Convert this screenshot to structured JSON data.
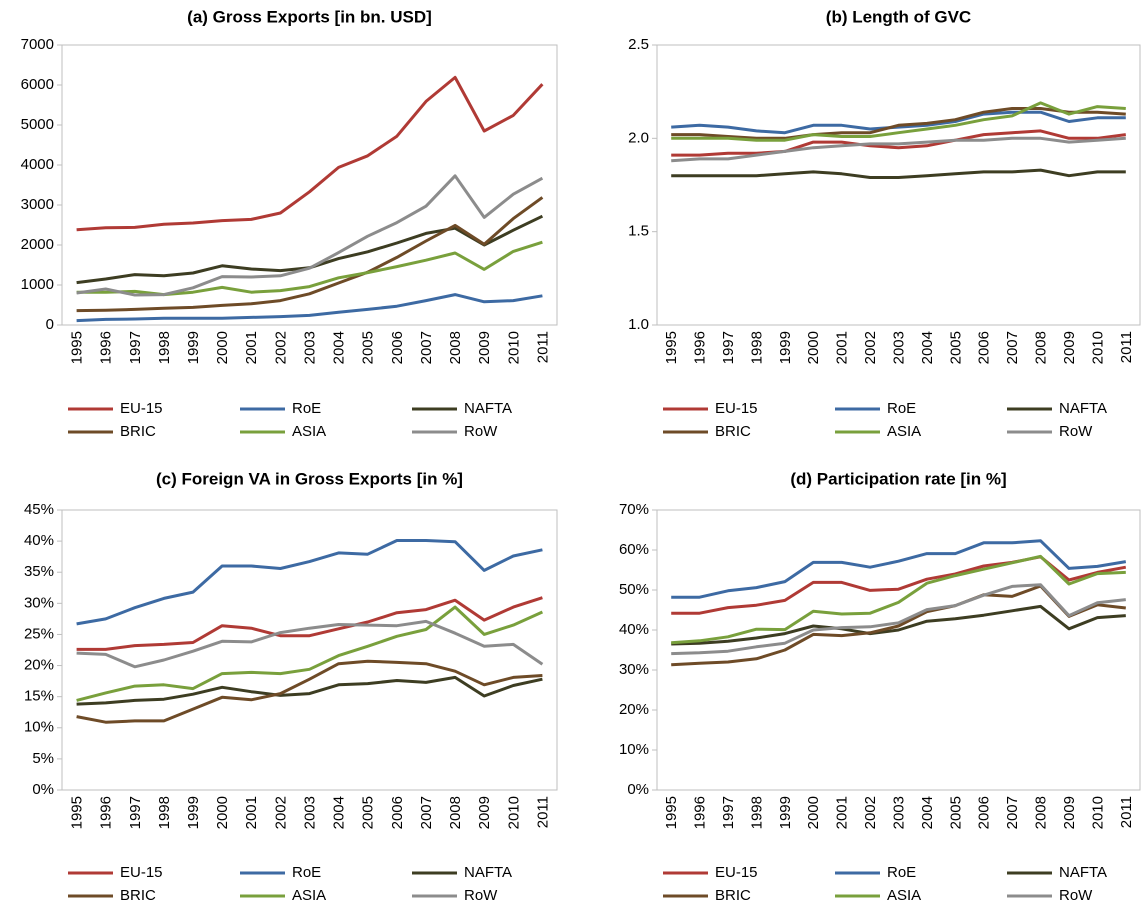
{
  "chart_data": [
    {
      "type": "line",
      "title": "(a) Gross Exports [in bn. USD]",
      "categories": [
        "1995",
        "1996",
        "1997",
        "1998",
        "1999",
        "2000",
        "2001",
        "2002",
        "2003",
        "2004",
        "2005",
        "2006",
        "2007",
        "2008",
        "2009",
        "2010",
        "2011"
      ],
      "ylim": [
        0,
        7000
      ],
      "yticks": [
        0,
        1000,
        2000,
        3000,
        4000,
        5000,
        6000,
        7000
      ],
      "grid": false,
      "series": [
        {
          "name": "EU-15",
          "color": "#b03a35",
          "values": [
            2380,
            2430,
            2440,
            2520,
            2550,
            2610,
            2640,
            2800,
            3330,
            3940,
            4230,
            4720,
            5590,
            6190,
            4850,
            5240,
            6020
          ]
        },
        {
          "name": "RoE",
          "color": "#3d6aa3",
          "values": [
            110,
            140,
            150,
            170,
            170,
            170,
            190,
            210,
            240,
            320,
            390,
            470,
            610,
            760,
            580,
            610,
            730
          ]
        },
        {
          "name": "NAFTA",
          "color": "#3d3d22",
          "values": [
            1060,
            1150,
            1260,
            1230,
            1300,
            1480,
            1400,
            1360,
            1430,
            1660,
            1830,
            2050,
            2290,
            2420,
            2000,
            2370,
            2720
          ]
        },
        {
          "name": "BRIC",
          "color": "#6e4b27",
          "values": [
            360,
            370,
            390,
            420,
            440,
            490,
            530,
            610,
            780,
            1050,
            1320,
            1690,
            2100,
            2490,
            2020,
            2660,
            3190
          ]
        },
        {
          "name": "ASIA",
          "color": "#79a03c",
          "values": [
            820,
            820,
            840,
            760,
            820,
            940,
            820,
            860,
            960,
            1180,
            1310,
            1460,
            1620,
            1800,
            1390,
            1840,
            2070
          ]
        },
        {
          "name": "RoW",
          "color": "#8c8c8c",
          "values": [
            800,
            900,
            750,
            760,
            930,
            1210,
            1200,
            1230,
            1420,
            1810,
            2220,
            2560,
            2970,
            3730,
            2690,
            3270,
            3670
          ]
        }
      ]
    },
    {
      "type": "line",
      "title": "(b) Length of GVC",
      "categories": [
        "1995",
        "1996",
        "1997",
        "1998",
        "1999",
        "2000",
        "2001",
        "2002",
        "2003",
        "2004",
        "2005",
        "2006",
        "2007",
        "2008",
        "2009",
        "2010",
        "2011"
      ],
      "ylim": [
        1,
        2.5
      ],
      "yticks": [
        {
          "value": 1,
          "label": "1.0"
        },
        1.5,
        {
          "value": 2,
          "label": "2.0"
        },
        2.5
      ],
      "grid": false,
      "series": [
        {
          "name": "EU-15",
          "color": "#b03a35",
          "values": [
            1.91,
            1.91,
            1.92,
            1.92,
            1.93,
            1.98,
            1.98,
            1.96,
            1.95,
            1.96,
            1.99,
            2.02,
            2.03,
            2.04,
            2.0,
            2.0,
            2.02
          ]
        },
        {
          "name": "RoE",
          "color": "#3d6aa3",
          "values": [
            2.06,
            2.07,
            2.06,
            2.04,
            2.03,
            2.07,
            2.07,
            2.05,
            2.06,
            2.07,
            2.09,
            2.13,
            2.14,
            2.14,
            2.09,
            2.11,
            2.11
          ]
        },
        {
          "name": "NAFTA",
          "color": "#3d3d22",
          "values": [
            1.8,
            1.8,
            1.8,
            1.8,
            1.81,
            1.82,
            1.81,
            1.79,
            1.79,
            1.8,
            1.81,
            1.82,
            1.82,
            1.83,
            1.8,
            1.82,
            1.82
          ]
        },
        {
          "name": "BRIC",
          "color": "#6e4b27",
          "values": [
            2.02,
            2.02,
            2.01,
            2.0,
            2.0,
            2.02,
            2.03,
            2.03,
            2.07,
            2.08,
            2.1,
            2.14,
            2.16,
            2.16,
            2.14,
            2.14,
            2.13
          ]
        },
        {
          "name": "ASIA",
          "color": "#79a03c",
          "values": [
            2.0,
            2.0,
            2.0,
            1.99,
            1.99,
            2.02,
            2.01,
            2.01,
            2.03,
            2.05,
            2.07,
            2.1,
            2.12,
            2.19,
            2.13,
            2.17,
            2.16
          ]
        },
        {
          "name": "RoW",
          "color": "#8c8c8c",
          "values": [
            1.88,
            1.89,
            1.89,
            1.91,
            1.93,
            1.95,
            1.96,
            1.97,
            1.97,
            1.98,
            1.99,
            1.99,
            2.0,
            2.0,
            1.98,
            1.99,
            2.0
          ]
        }
      ]
    },
    {
      "type": "line",
      "title": "(c) Foreign VA in Gross Exports [in %]",
      "categories": [
        "1995",
        "1996",
        "1997",
        "1998",
        "1999",
        "2000",
        "2001",
        "2002",
        "2003",
        "2004",
        "2005",
        "2006",
        "2007",
        "2008",
        "2009",
        "2010",
        "2011"
      ],
      "ylim": [
        0,
        45
      ],
      "yticks": [
        {
          "value": 0,
          "label": "0%"
        },
        {
          "value": 5,
          "label": "5%"
        },
        {
          "value": 10,
          "label": "10%"
        },
        {
          "value": 15,
          "label": "15%"
        },
        {
          "value": 20,
          "label": "20%"
        },
        {
          "value": 25,
          "label": "25%"
        },
        {
          "value": 30,
          "label": "30%"
        },
        {
          "value": 35,
          "label": "35%"
        },
        {
          "value": 40,
          "label": "40%"
        },
        {
          "value": 45,
          "label": "45%"
        }
      ],
      "grid": false,
      "series": [
        {
          "name": "EU-15",
          "color": "#b03a35",
          "values": [
            22.6,
            22.6,
            23.2,
            23.4,
            23.7,
            26.4,
            26.0,
            24.8,
            24.8,
            25.9,
            27.0,
            28.5,
            29.0,
            30.5,
            27.3,
            29.4,
            30.9
          ]
        },
        {
          "name": "RoE",
          "color": "#3d6aa3",
          "values": [
            26.7,
            27.5,
            29.3,
            30.8,
            31.8,
            36.0,
            36.0,
            35.6,
            36.7,
            38.1,
            37.9,
            40.1,
            40.1,
            39.9,
            35.3,
            37.6,
            38.6
          ]
        },
        {
          "name": "NAFTA",
          "color": "#3d3d22",
          "values": [
            13.8,
            14.0,
            14.4,
            14.6,
            15.4,
            16.5,
            15.8,
            15.2,
            15.5,
            16.9,
            17.1,
            17.6,
            17.3,
            18.1,
            15.1,
            16.8,
            17.8
          ]
        },
        {
          "name": "BRIC",
          "color": "#6e4b27",
          "values": [
            11.8,
            10.9,
            11.1,
            11.1,
            13.0,
            14.9,
            14.5,
            15.5,
            17.8,
            20.3,
            20.7,
            20.5,
            20.3,
            19.1,
            16.9,
            18.1,
            18.4
          ]
        },
        {
          "name": "ASIA",
          "color": "#79a03c",
          "values": [
            14.4,
            15.6,
            16.7,
            16.9,
            16.3,
            18.7,
            18.9,
            18.7,
            19.4,
            21.6,
            23.1,
            24.7,
            25.8,
            29.4,
            25.0,
            26.5,
            28.6
          ]
        },
        {
          "name": "RoW",
          "color": "#8c8c8c",
          "values": [
            22.0,
            21.8,
            19.8,
            20.9,
            22.3,
            23.9,
            23.8,
            25.3,
            26.0,
            26.6,
            26.5,
            26.4,
            27.1,
            25.2,
            23.1,
            23.4,
            20.2
          ]
        }
      ]
    },
    {
      "type": "line",
      "title": "(d) Participation rate [in %]",
      "categories": [
        "1995",
        "1996",
        "1997",
        "1998",
        "1999",
        "2000",
        "2001",
        "2002",
        "2003",
        "2004",
        "2005",
        "2006",
        "2007",
        "2008",
        "2009",
        "2010",
        "2011"
      ],
      "ylim": [
        0,
        70
      ],
      "yticks": [
        {
          "value": 0,
          "label": "0%"
        },
        {
          "value": 10,
          "label": "10%"
        },
        {
          "value": 20,
          "label": "20%"
        },
        {
          "value": 30,
          "label": "30%"
        },
        {
          "value": 40,
          "label": "40%"
        },
        {
          "value": 50,
          "label": "50%"
        },
        {
          "value": 60,
          "label": "60%"
        },
        {
          "value": 70,
          "label": "70%"
        }
      ],
      "grid": false,
      "series": [
        {
          "name": "EU-15",
          "color": "#b03a35",
          "values": [
            44.2,
            44.2,
            45.6,
            46.2,
            47.4,
            51.9,
            51.9,
            49.9,
            50.2,
            52.7,
            54.0,
            56.0,
            56.9,
            58.3,
            52.5,
            54.4,
            55.7
          ]
        },
        {
          "name": "RoE",
          "color": "#3d6aa3",
          "values": [
            48.2,
            48.2,
            49.8,
            50.6,
            52.1,
            56.9,
            56.9,
            55.7,
            57.2,
            59.1,
            59.1,
            61.8,
            61.8,
            62.3,
            55.4,
            55.9,
            57.1
          ]
        },
        {
          "name": "NAFTA",
          "color": "#3d3d22",
          "values": [
            36.5,
            36.7,
            37.2,
            38.0,
            39.1,
            41.0,
            40.3,
            39.1,
            40.0,
            42.2,
            42.8,
            43.7,
            44.8,
            45.9,
            40.3,
            43.1,
            43.6
          ]
        },
        {
          "name": "BRIC",
          "color": "#6e4b27",
          "values": [
            31.3,
            31.7,
            32.0,
            32.8,
            35.0,
            38.9,
            38.6,
            39.3,
            41.0,
            44.6,
            46.1,
            48.8,
            48.4,
            51.0,
            43.4,
            46.3,
            45.5
          ]
        },
        {
          "name": "ASIA",
          "color": "#79a03c",
          "values": [
            36.8,
            37.3,
            38.3,
            40.2,
            40.1,
            44.7,
            44.0,
            44.2,
            46.9,
            51.7,
            53.6,
            55.2,
            56.8,
            58.4,
            51.5,
            54.1,
            54.4
          ]
        },
        {
          "name": "RoW",
          "color": "#8c8c8c",
          "values": [
            34.1,
            34.3,
            34.7,
            35.8,
            36.7,
            40.0,
            40.6,
            40.8,
            41.8,
            45.1,
            46.1,
            48.7,
            50.9,
            51.3,
            43.6,
            46.8,
            47.6
          ]
        }
      ]
    }
  ]
}
